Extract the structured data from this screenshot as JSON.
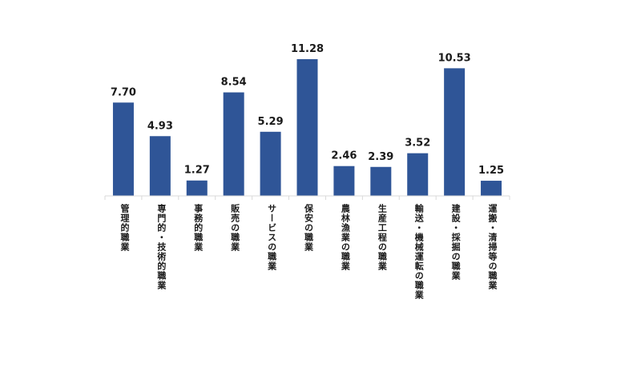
{
  "chart_data": {
    "type": "bar",
    "categories": [
      "管理的職業",
      "専門的・技術的職業",
      "事務的職業",
      "販売の職業",
      "サービスの職業",
      "保安の職業",
      "農林漁業の職業",
      "生産工程の職業",
      "輸送・機械運転の職業",
      "建設・採掘の職業",
      "運搬・清掃等の職業"
    ],
    "values": [
      7.7,
      4.93,
      1.27,
      8.54,
      5.29,
      11.28,
      2.46,
      2.39,
      3.52,
      10.53,
      1.25
    ],
    "value_labels": [
      "7.70",
      "4.93",
      "1.27",
      "8.54",
      "5.29",
      "11.28",
      "2.46",
      "2.39",
      "3.52",
      "10.53",
      "1.25"
    ],
    "ylim": [
      0,
      11.28
    ],
    "grid": false,
    "bar_color": "#2F5597"
  }
}
